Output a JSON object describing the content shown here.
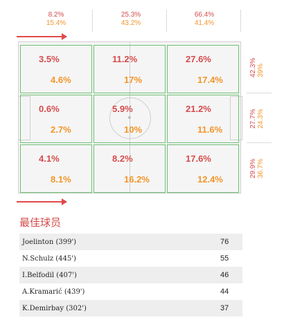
{
  "columns": [
    {
      "top": "8.2%",
      "bottom": "15.4%"
    },
    {
      "top": "25.3%",
      "bottom": "43.2%"
    },
    {
      "top": "66.4%",
      "bottom": "41.4%"
    }
  ],
  "zones": [
    {
      "top": "3.5%",
      "bottom": "4.6%"
    },
    {
      "top": "11.2%",
      "bottom": "17%"
    },
    {
      "top": "27.6%",
      "bottom": "17.4%"
    },
    {
      "top": "0.6%",
      "bottom": "2.7%"
    },
    {
      "top": "5.9%",
      "bottom": "10%"
    },
    {
      "top": "21.2%",
      "bottom": "11.6%"
    },
    {
      "top": "4.1%",
      "bottom": "8.1%"
    },
    {
      "top": "8.2%",
      "bottom": "16.2%"
    },
    {
      "top": "17.6%",
      "bottom": "12.4%"
    }
  ],
  "rows": [
    {
      "red": "42.3%",
      "orange": "39%"
    },
    {
      "red": "27.7%",
      "orange": "24.3%"
    },
    {
      "red": "29.9%",
      "orange": "36.7%"
    }
  ],
  "best_players": {
    "title": "最佳球员",
    "players": [
      {
        "name": "Joelinton (399')",
        "value": "76"
      },
      {
        "name": "N.Schulz (445')",
        "value": "55"
      },
      {
        "name": "I.Belfodil (407')",
        "value": "46"
      },
      {
        "name": "A.Kramarić (439')",
        "value": "44"
      },
      {
        "name": "K.Demirbay (302')",
        "value": "37"
      }
    ]
  },
  "colors": {
    "team_a": "#d64b4b",
    "team_b": "#f2952a",
    "zone_border": "#6fbf73"
  }
}
